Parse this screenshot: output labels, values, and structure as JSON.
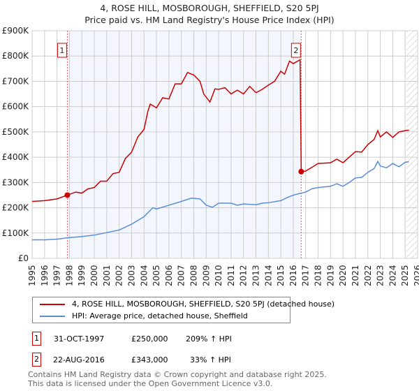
{
  "chart_data": {
    "type": "line",
    "title": "4, ROSE HILL, MOSBOROUGH, SHEFFIELD, S20 5PJ",
    "subtitle": "Price paid vs. HM Land Registry's House Price Index (HPI)",
    "xlim": [
      1995,
      2026
    ],
    "ylim": [
      0,
      900000
    ],
    "yticks": [
      {
        "v": 0,
        "label": "£0"
      },
      {
        "v": 100000,
        "label": "£100K"
      },
      {
        "v": 200000,
        "label": "£200K"
      },
      {
        "v": 300000,
        "label": "£300K"
      },
      {
        "v": 400000,
        "label": "£400K"
      },
      {
        "v": 500000,
        "label": "£500K"
      },
      {
        "v": 600000,
        "label": "£600K"
      },
      {
        "v": 700000,
        "label": "£700K"
      },
      {
        "v": 800000,
        "label": "£800K"
      },
      {
        "v": 900000,
        "label": "£900K"
      }
    ],
    "xticks": [
      "1995",
      "1996",
      "1997",
      "1998",
      "1999",
      "2000",
      "2001",
      "2002",
      "2003",
      "2004",
      "2005",
      "2006",
      "2007",
      "2008",
      "2009",
      "2010",
      "2011",
      "2012",
      "2013",
      "2014",
      "2015",
      "2016",
      "2017",
      "2018",
      "2019",
      "2020",
      "2021",
      "2022",
      "2023",
      "2024",
      "2025",
      "2026"
    ],
    "series": [
      {
        "name": "4, ROSE HILL, MOSBOROUGH, SHEFFIELD, S20 5PJ (detached house)",
        "color": "#cc0000",
        "x": [
          1995,
          1996,
          1997,
          1997.83,
          1998.5,
          1999,
          1999.5,
          2000,
          2000.5,
          2001,
          2001.5,
          2002,
          2002.5,
          2003,
          2003.5,
          2004,
          2004.3,
          2004.5,
          2005,
          2005.5,
          2006,
          2006.5,
          2007,
          2007.5,
          2008,
          2008.5,
          2008.8,
          2009.3,
          2009.7,
          2010,
          2010.5,
          2011,
          2011.5,
          2012,
          2012.5,
          2013,
          2013.5,
          2014,
          2014.5,
          2015,
          2015.3,
          2015.7,
          2016,
          2016.55,
          2016.64,
          2017,
          2017.5,
          2018,
          2019,
          2019.5,
          2020,
          2020.5,
          2021,
          2021.5,
          2022,
          2022.5,
          2022.8,
          2023,
          2023.5,
          2024,
          2024.5,
          2025,
          2025.3
        ],
        "y": [
          225000,
          228000,
          235000,
          250000,
          262000,
          258000,
          275000,
          280000,
          305000,
          305000,
          335000,
          340000,
          395000,
          420000,
          480000,
          510000,
          580000,
          610000,
          595000,
          635000,
          630000,
          690000,
          690000,
          735000,
          725000,
          700000,
          650000,
          618000,
          670000,
          668000,
          675000,
          650000,
          665000,
          650000,
          680000,
          655000,
          668000,
          685000,
          700000,
          740000,
          728000,
          780000,
          770000,
          785000,
          343000,
          345000,
          360000,
          375000,
          378000,
          392000,
          378000,
          400000,
          422000,
          420000,
          450000,
          470000,
          505000,
          480000,
          500000,
          478000,
          500000,
          505000,
          507000
        ]
      },
      {
        "name": "HPI: Average price, detached house, Sheffield",
        "color": "#5b8dd6",
        "x": [
          1995,
          1996,
          1997,
          1997.83,
          1998,
          1999,
          2000,
          2001,
          2002,
          2003,
          2004,
          2004.7,
          2005,
          2006,
          2007,
          2007.8,
          2008.5,
          2009,
          2009.5,
          2010,
          2011,
          2011.5,
          2012,
          2013,
          2013.5,
          2014,
          2015,
          2015.5,
          2016,
          2016.6,
          2017,
          2017.5,
          2018,
          2019,
          2019.5,
          2020,
          2020.5,
          2021,
          2021.5,
          2022,
          2022.5,
          2022.8,
          2023,
          2023.5,
          2024,
          2024.5,
          2025,
          2025.3
        ],
        "y": [
          73000,
          73000,
          76000,
          81000,
          82000,
          86000,
          92000,
          102000,
          112000,
          135000,
          165000,
          200000,
          195000,
          210000,
          225000,
          238000,
          235000,
          210000,
          202000,
          218000,
          218000,
          210000,
          215000,
          212000,
          218000,
          220000,
          228000,
          240000,
          250000,
          257000,
          262000,
          275000,
          280000,
          285000,
          295000,
          285000,
          300000,
          318000,
          320000,
          340000,
          355000,
          383000,
          365000,
          358000,
          375000,
          362000,
          380000,
          382000
        ]
      }
    ],
    "sales": [
      {
        "n": "1",
        "x": 1997.83,
        "date": "31-OCT-1997",
        "price": "£250,000",
        "price_v": 250000,
        "hpi": "209% ↑ HPI"
      },
      {
        "n": "2",
        "x": 2016.64,
        "date": "22-AUG-2016",
        "price": "£343,000",
        "price_v": 343000,
        "hpi": "33% ↑ HPI"
      }
    ],
    "hatch_from": 2025.1,
    "footer": [
      "Contains HM Land Registry data © Crown copyright and database right 2025.",
      "This data is licensed under the Open Government Licence v3.0."
    ]
  }
}
